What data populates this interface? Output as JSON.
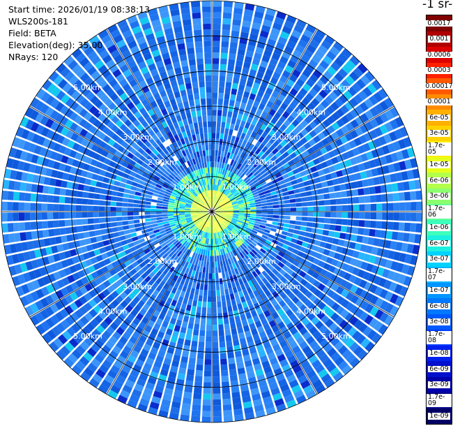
{
  "header": {
    "start_time": "Start time: 2026/01/19 08:38:13",
    "instrument": "WLS200s-181",
    "field": "Field: BETA",
    "elevation": "Elevation(deg): 35.00",
    "nrays": "NRays: 120"
  },
  "colorbar": {
    "units_label": "-1 sr-",
    "ticks": [
      "0.0017",
      "0.001",
      "0.0006",
      "0.0003",
      "0.00017",
      "0.0001",
      "6e-05",
      "3e-05",
      "1.7e-05",
      "1e-05",
      "6e-06",
      "3e-06",
      "1.7e-06",
      "1e-06",
      "6e-07",
      "3e-07",
      "1.7e-07",
      "1e-07",
      "6e-08",
      "3e-08",
      "1.7e-08",
      "1e-08",
      "6e-09",
      "3e-09",
      "1.7e-09",
      "1e-09"
    ],
    "colors": [
      "#800000",
      "#b00000",
      "#dd0000",
      "#ff2000",
      "#ff5a00",
      "#ff8c00",
      "#ffb000",
      "#ffd200",
      "#ffee00",
      "#e6ff1a",
      "#b4ff4a",
      "#8cff6e",
      "#64ff94",
      "#3cffbc",
      "#1cf0e0",
      "#00d2ff",
      "#00b4ff",
      "#0096ff",
      "#0078ff",
      "#005aff",
      "#003cff",
      "#0020ee",
      "#0010cc",
      "#0000aa",
      "#000088",
      "#000066"
    ]
  },
  "chart_data": {
    "type": "heatmap",
    "projection": "polar PPI scan",
    "rays": 120,
    "range_rings_km": [
      1,
      2,
      3,
      4,
      5
    ],
    "ring_labels": [
      "1.00km",
      "2.00km",
      "3.00km",
      "4.00km",
      "5.00km"
    ],
    "max_range_km": 6,
    "field": "BETA",
    "value_range": [
      1e-09,
      0.0017
    ],
    "dominant_far_field_color": "#1e73f0",
    "near_field_colors": [
      "#ffff40",
      "#c8ff50",
      "#64ff94",
      "#1cf0e0",
      "#00b4ff"
    ]
  }
}
